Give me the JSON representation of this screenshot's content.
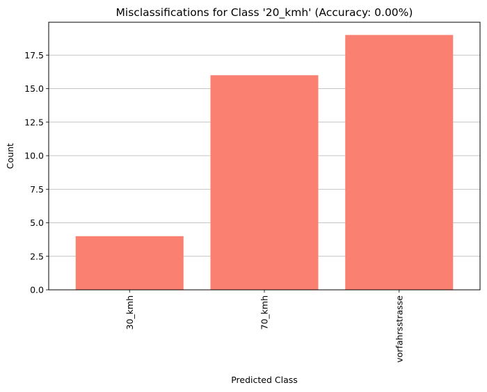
{
  "chart_data": {
    "type": "bar",
    "title": "Misclassifications for Class '20_kmh' (Accuracy: 0.00%)",
    "xlabel": "Predicted Class",
    "ylabel": "Count",
    "categories": [
      "30_kmh",
      "70_kmh",
      "vorfahrsstrasse"
    ],
    "values": [
      4,
      16,
      19
    ],
    "ylim": [
      0,
      19.95
    ],
    "yticks": [
      0.0,
      2.5,
      5.0,
      7.5,
      10.0,
      12.5,
      15.0,
      17.5
    ],
    "ytick_labels": [
      "0.0",
      "2.5",
      "5.0",
      "7.5",
      "10.0",
      "12.5",
      "15.0",
      "17.5"
    ],
    "x_tick_rotation": 90,
    "grid": "y-axis",
    "legend": "none",
    "bar_color": "#fa8072",
    "grid_color": "#b0b0b0"
  }
}
